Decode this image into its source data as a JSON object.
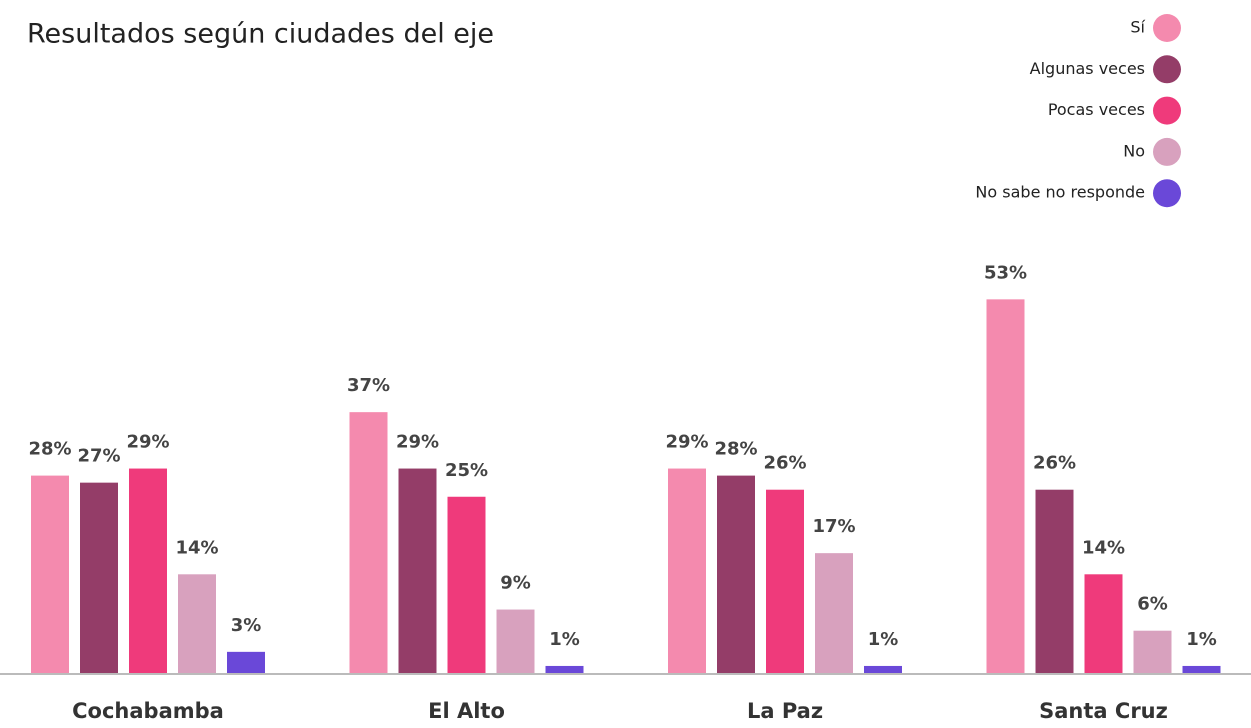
{
  "chart_data": {
    "type": "bar",
    "title": "Resultados según ciudades del eje",
    "categories": [
      "Cochabamba",
      "El Alto",
      "La Paz",
      "Santa Cruz"
    ],
    "series": [
      {
        "name": "Sí",
        "color": "#f48aae",
        "values": [
          28,
          37,
          29,
          53
        ],
        "value_labels": [
          "28%",
          "37%",
          "29%",
          "53%"
        ]
      },
      {
        "name": "Algunas veces",
        "color": "#943d68",
        "values": [
          27,
          29,
          28,
          26
        ],
        "value_labels": [
          "27%",
          "29%",
          "28%",
          "26%"
        ]
      },
      {
        "name": "Pocas veces",
        "color": "#ef3a7b",
        "values": [
          29,
          25,
          26,
          14
        ],
        "value_labels": [
          "29%",
          "25%",
          "26%",
          "14%"
        ]
      },
      {
        "name": "No",
        "color": "#d8a1be",
        "values": [
          14,
          9,
          17,
          6
        ],
        "value_labels": [
          "14%",
          "9%",
          "17%",
          "6%"
        ]
      },
      {
        "name": "No sabe no responde",
        "color": "#6a48d8",
        "values": [
          3,
          1,
          1,
          1
        ],
        "value_labels": [
          "3%",
          "1%",
          "1%",
          "1%"
        ]
      }
    ],
    "legend": "top-right"
  }
}
